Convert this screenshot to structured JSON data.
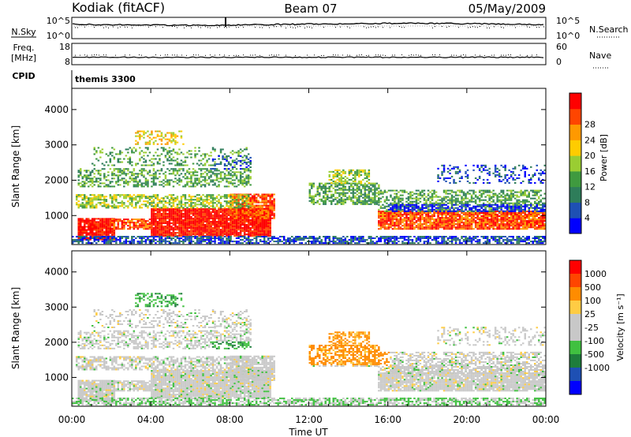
{
  "header": {
    "station": "Kodiak (fitACF)",
    "beam": "Beam 07",
    "date": "05/May/2009"
  },
  "strip_labels": {
    "nsky": "N.Sky",
    "nsky_top": "10^5",
    "nsky_bottom": "10^0",
    "nsearch": "N.Search",
    "nsearch_top": "10^5",
    "nsearch_bottom": "10^0",
    "freq": "Freq.",
    "freq_unit": "[MHz]",
    "freq_top": "18",
    "freq_bottom": "8",
    "nave": "Nave",
    "nave_top": "60",
    "nave_bottom": "0",
    "cpid": "CPID",
    "cpid_value": "themis 3300"
  },
  "colors": {
    "power": [
      "#0000ff",
      "#1e50b4",
      "#2e7d5a",
      "#3f9a3f",
      "#9acd32",
      "#ffcc00",
      "#ff9900",
      "#ff4500",
      "#ff0000"
    ],
    "velocity": [
      "#ff0000",
      "#ff4500",
      "#ff8c00",
      "#ffcc44",
      "#c8c8c8",
      "#c8c8c8",
      "#40c040",
      "#1e7d3c",
      "#1e50b4",
      "#0000ff"
    ]
  },
  "chart_data": [
    {
      "type": "heatmap",
      "name_key": "power",
      "ylabel": "Slant Range [km]",
      "ylim": [
        180,
        4600
      ],
      "yticks": [
        1000,
        2000,
        3000,
        4000
      ],
      "colorbar_label": "Power [dB]",
      "colorbar_ticks": [
        "4",
        "8",
        "12",
        "16",
        "20",
        "24",
        "28"
      ]
    },
    {
      "type": "heatmap",
      "name_key": "velocity",
      "ylabel": "Slant Range [km]",
      "ylim": [
        180,
        4600
      ],
      "yticks": [
        1000,
        2000,
        3000,
        4000
      ],
      "xlabel": "Time UT",
      "xlim": [
        0,
        24
      ],
      "xticks": [
        "00:00",
        "04:00",
        "08:00",
        "12:00",
        "16:00",
        "20:00",
        "00:00"
      ],
      "colorbar_label": "Velocity [m s⁻¹]",
      "colorbar_ticks": [
        "1000",
        "500",
        "100",
        "25",
        "-25",
        "-100",
        "-500",
        "-1000"
      ]
    }
  ]
}
